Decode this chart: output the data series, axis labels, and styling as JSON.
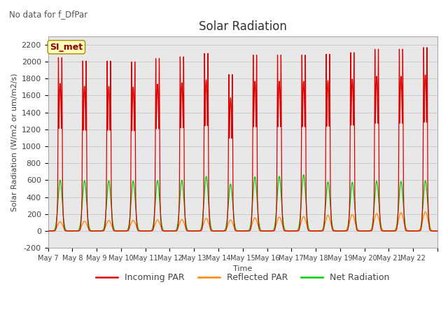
{
  "title": "Solar Radiation",
  "subtitle": "No data for f_DfPar",
  "ylabel": "Solar Radiation (W/m2 or um/m2/s)",
  "xlabel": "Time",
  "ylim": [
    -200,
    2300
  ],
  "yticks": [
    -200,
    0,
    200,
    400,
    600,
    800,
    1000,
    1200,
    1400,
    1600,
    1800,
    2000,
    2200
  ],
  "legend_label": "SI_met",
  "line_colors": {
    "incoming": "#dd0000",
    "reflected": "#ff8800",
    "net": "#00cc00"
  },
  "line_labels": [
    "Incoming PAR",
    "Reflected PAR",
    "Net Radiation"
  ],
  "background_color": "#e8e8e8",
  "n_days": 16,
  "day_start": 7,
  "incoming_peaks": [
    2050,
    2010,
    2010,
    2000,
    2040,
    2060,
    2100,
    1850,
    2080,
    2080,
    2080,
    2090,
    2110,
    2150,
    2150,
    2170
  ],
  "reflected_peaks": [
    110,
    115,
    125,
    125,
    130,
    135,
    150,
    130,
    155,
    165,
    170,
    185,
    195,
    205,
    215,
    225
  ],
  "net_peaks": [
    600,
    595,
    595,
    590,
    595,
    600,
    645,
    555,
    640,
    645,
    665,
    580,
    575,
    590,
    585,
    595
  ],
  "net_min": -80,
  "day_labels": [
    "May 7",
    "May 8",
    "May 9",
    "May 10",
    "May 11",
    "May 12",
    "May 13",
    "May 14",
    "May 15",
    "May 16",
    "May 17",
    "May 18",
    "May 19",
    "May 20",
    "May 21",
    "May 22"
  ],
  "figsize": [
    6.4,
    4.8
  ],
  "dpi": 100,
  "title_fontsize": 12,
  "label_fontsize": 8,
  "tick_fontsize": 8,
  "legend_fontsize": 9
}
